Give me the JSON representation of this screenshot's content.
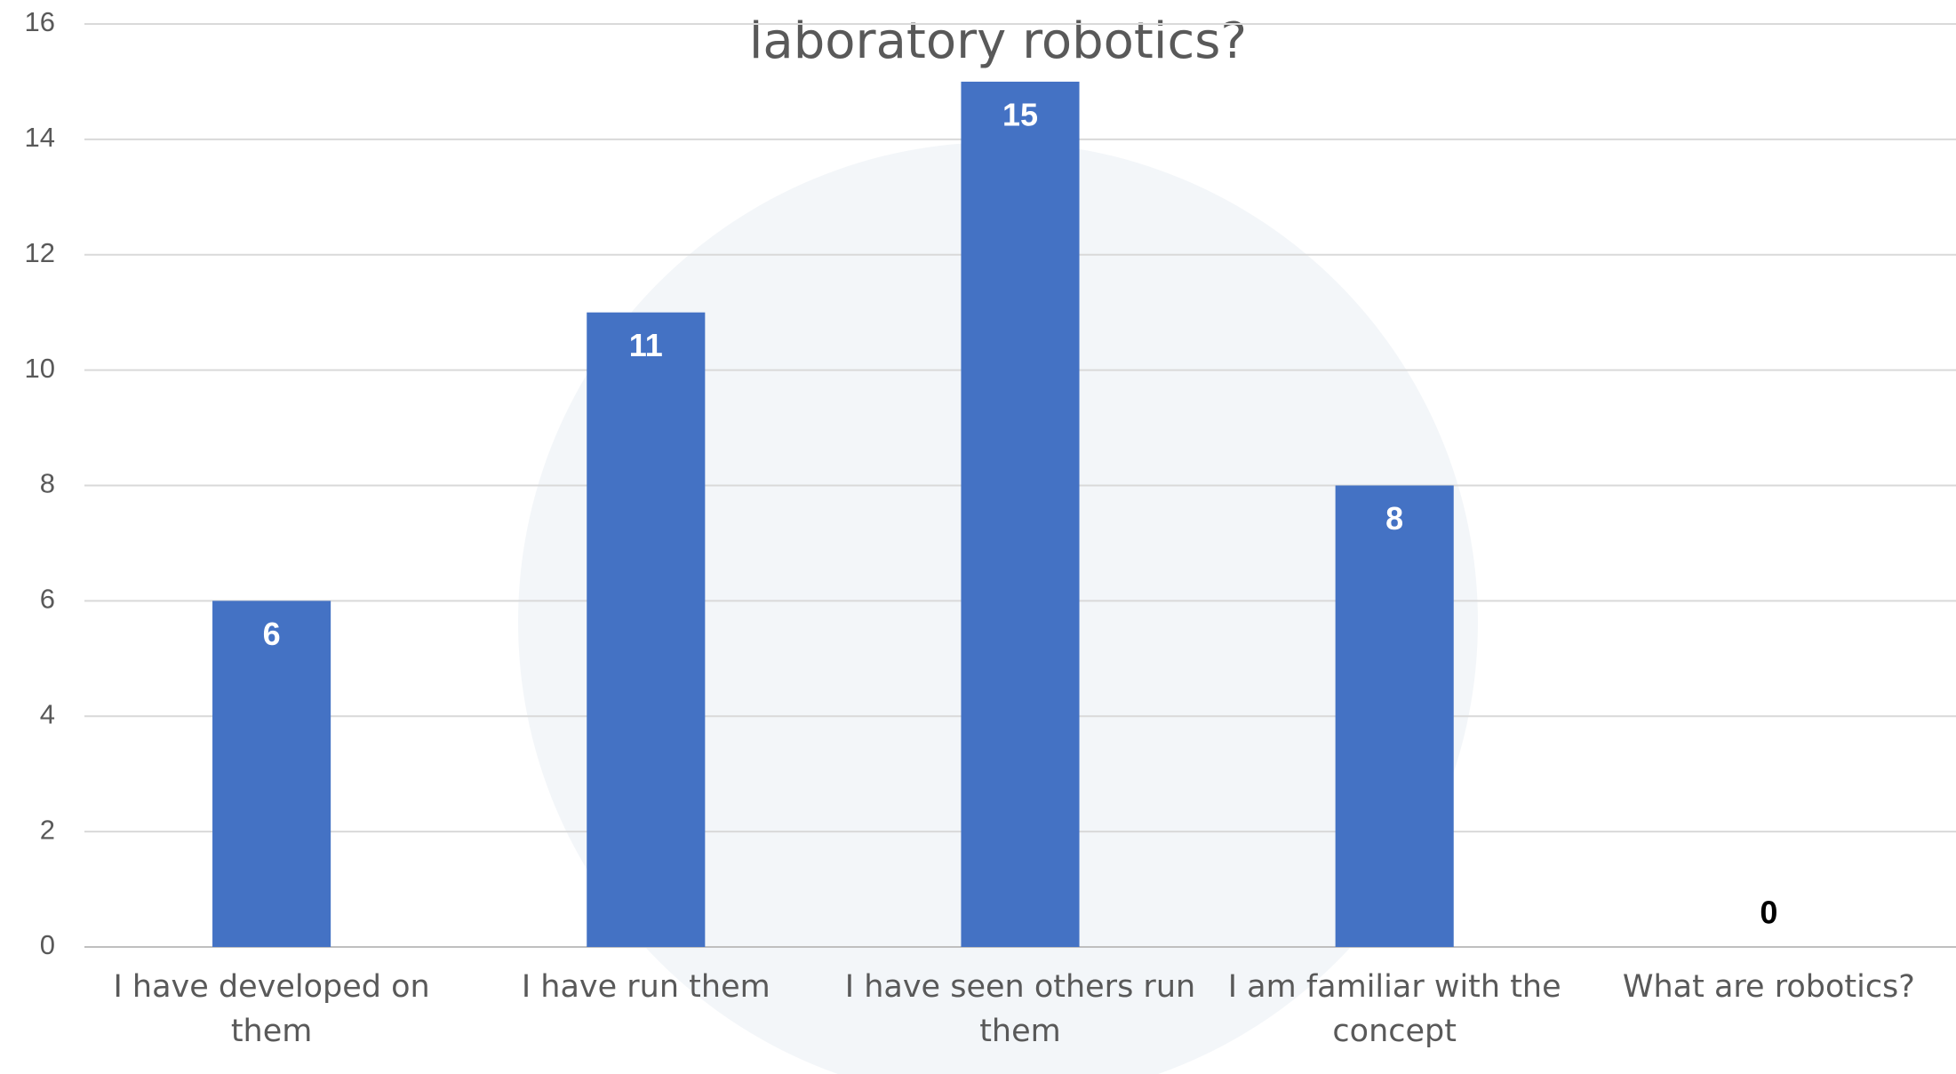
{
  "chart_data": {
    "type": "bar",
    "title": "laboratory robotics?",
    "categories": [
      "I have developed on them",
      "I have run them",
      "I have seen others run them",
      "I am familiar with the concept",
      "What are robotics?"
    ],
    "values": [
      6,
      11,
      15,
      8,
      0
    ],
    "color": "#4472c4",
    "ylim": [
      0,
      16
    ],
    "yticks": [
      0,
      2,
      4,
      6,
      8,
      10,
      12,
      14,
      16
    ],
    "grid": true
  }
}
